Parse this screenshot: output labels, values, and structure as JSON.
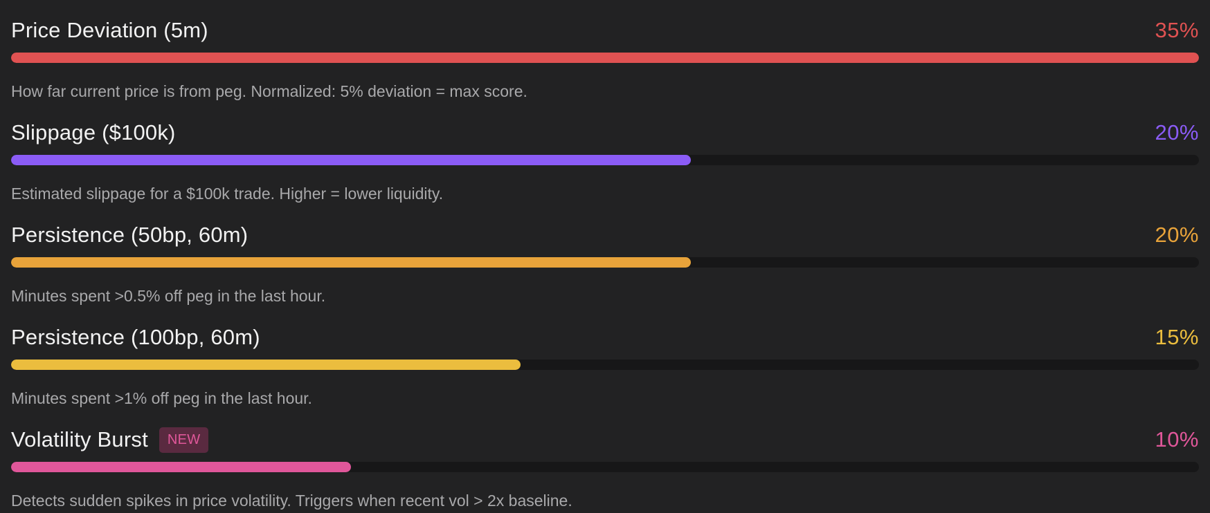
{
  "metrics": [
    {
      "title": "Price Deviation (5m)",
      "percent_label": "35%",
      "bar_fill": 1.0,
      "description": "How far current price is from peg. Normalized: 5% deviation = max score.",
      "color": "#e05252",
      "badge": null
    },
    {
      "title": "Slippage ($100k)",
      "percent_label": "20%",
      "bar_fill": 0.572,
      "description": "Estimated slippage for a $100k trade. Higher = lower liquidity.",
      "color": "#8b5cf6",
      "badge": null
    },
    {
      "title": "Persistence (50bp, 60m)",
      "percent_label": "20%",
      "bar_fill": 0.572,
      "description": "Minutes spent >0.5% off peg in the last hour.",
      "color": "#e8a33a",
      "badge": null
    },
    {
      "title": "Persistence (100bp, 60m)",
      "percent_label": "15%",
      "bar_fill": 0.429,
      "description": "Minutes spent >1% off peg in the last hour.",
      "color": "#ebbd3e",
      "badge": null
    },
    {
      "title": "Volatility Burst",
      "percent_label": "10%",
      "bar_fill": 0.286,
      "description": "Detects sudden spikes in price volatility. Triggers when recent vol > 2x baseline.",
      "color": "#e0579a",
      "badge": "NEW"
    }
  ]
}
